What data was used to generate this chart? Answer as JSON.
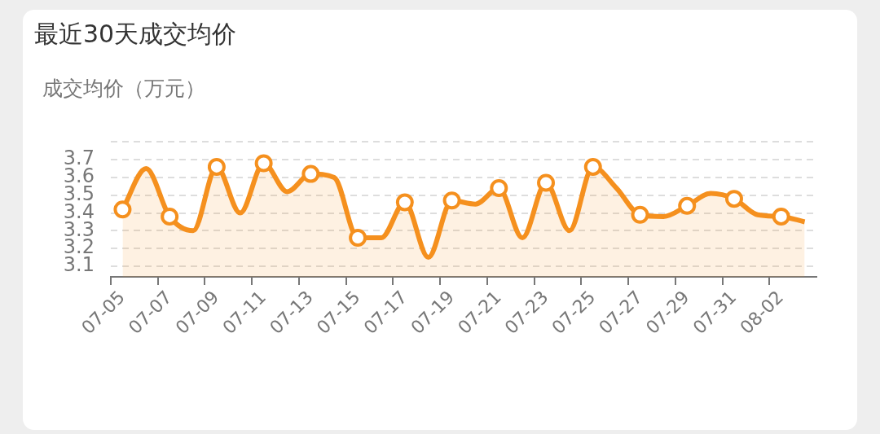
{
  "chart_data": {
    "type": "area",
    "title": "最近30天成交均价",
    "ylabel": "成交均价（万元）",
    "categories": [
      "07-05",
      null,
      "07-07",
      null,
      "07-09",
      null,
      "07-11",
      null,
      "07-13",
      null,
      "07-15",
      null,
      "07-17",
      null,
      "07-19",
      null,
      "07-21",
      null,
      "07-23",
      null,
      "07-25",
      null,
      "07-27",
      null,
      "07-29",
      null,
      "07-31",
      null,
      "08-02",
      null
    ],
    "series": [
      {
        "color": "#f5901e",
        "values": [
          3.42,
          3.65,
          3.38,
          3.3,
          3.66,
          3.4,
          3.68,
          3.52,
          3.62,
          3.6,
          3.26,
          3.26,
          3.46,
          3.15,
          3.47,
          3.45,
          3.54,
          3.26,
          3.57,
          3.3,
          3.66,
          3.54,
          3.39,
          3.38,
          3.44,
          3.51,
          3.48,
          3.39,
          3.38,
          3.35
        ]
      }
    ],
    "ylim": [
      3.04,
      3.8
    ],
    "yticks": [
      3.1,
      3.2,
      3.3,
      3.4,
      3.5,
      3.6,
      3.7,
      {
        "value": 3.8,
        "label": null
      }
    ],
    "grid": "y",
    "legend": false,
    "marker": "circle",
    "line_style": "solid"
  }
}
